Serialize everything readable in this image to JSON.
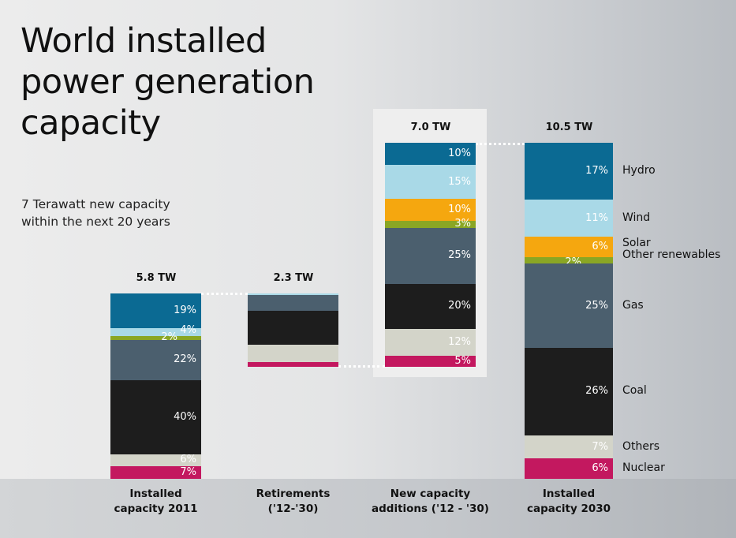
{
  "title_lines": [
    "World installed",
    "power generation",
    "capacity"
  ],
  "subtitle_lines": [
    "7 Terawatt new capacity",
    "within the next 20 years"
  ],
  "chart_data": {
    "type": "bar",
    "subtype": "waterfall-stacked",
    "title": "World installed power generation capacity",
    "unit": "TW",
    "series_names": [
      "Hydro",
      "Wind",
      "Solar",
      "Other renewables",
      "Gas",
      "Coal",
      "Others",
      "Nuclear"
    ],
    "colors": [
      "#0b6a93",
      "#a9d9e7",
      "#f5a70f",
      "#8aa624",
      "#4b5f6e",
      "#1d1d1d",
      "#d3d4c9",
      "#c3185f"
    ],
    "bars": [
      {
        "category": [
          "Installed",
          "capacity 2011"
        ],
        "total": 5.8,
        "total_label": "5.8 TW",
        "shares": [
          19,
          4,
          0,
          2,
          22,
          40,
          6,
          7
        ],
        "labels": [
          "19%",
          "4%",
          "",
          "2%",
          "22%",
          "40%",
          "6%",
          "7%"
        ]
      },
      {
        "category": [
          "Retirements",
          "('12-'30)"
        ],
        "total": 2.3,
        "total_label": "2.3 TW",
        "shares": [
          0,
          2,
          0,
          0,
          22,
          46,
          24,
          6
        ],
        "labels": [
          "",
          "",
          "",
          "",
          "",
          "",
          "",
          ""
        ]
      },
      {
        "category": [
          "New capacity",
          "additions ('12 - '30)"
        ],
        "total": 7.0,
        "total_label": "7.0 TW",
        "shares": [
          10,
          15,
          10,
          3,
          25,
          20,
          12,
          5
        ],
        "labels": [
          "10%",
          "15%",
          "10%",
          "3%",
          "25%",
          "20%",
          "12%",
          "5%"
        ]
      },
      {
        "category": [
          "Installed",
          "capacity 2030"
        ],
        "total": 10.5,
        "total_label": "10.5 TW",
        "shares": [
          17,
          11,
          6,
          2,
          25,
          26,
          7,
          6
        ],
        "labels": [
          "17%",
          "11%",
          "6%",
          "2%",
          "25%",
          "26%",
          "7%",
          "6%"
        ]
      }
    ]
  }
}
